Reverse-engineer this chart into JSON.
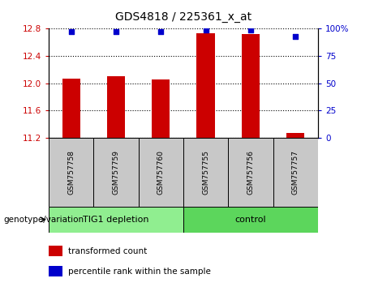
{
  "title": "GDS4818 / 225361_x_at",
  "samples": [
    "GSM757758",
    "GSM757759",
    "GSM757760",
    "GSM757755",
    "GSM757756",
    "GSM757757"
  ],
  "bar_values": [
    12.07,
    12.1,
    12.05,
    12.73,
    12.72,
    11.27
  ],
  "percentile_values": [
    97,
    97,
    97,
    99,
    99,
    93
  ],
  "ylim_left": [
    11.2,
    12.8
  ],
  "ylim_right": [
    0,
    100
  ],
  "yticks_left": [
    11.2,
    11.6,
    12.0,
    12.4,
    12.8
  ],
  "yticks_right": [
    0,
    25,
    50,
    75,
    100
  ],
  "bar_color": "#cc0000",
  "marker_color": "#0000cc",
  "bar_bottom": 11.2,
  "groups": [
    {
      "label": "TIG1 depletion",
      "indices": [
        0,
        1,
        2
      ],
      "color": "#90EE90"
    },
    {
      "label": "control",
      "indices": [
        3,
        4,
        5
      ],
      "color": "#5cd65c"
    }
  ],
  "group_box_color": "#c8c8c8",
  "legend_items": [
    {
      "color": "#cc0000",
      "label": "transformed count"
    },
    {
      "color": "#0000cc",
      "label": "percentile rank within the sample"
    }
  ],
  "genotype_label": "genotype/variation",
  "left_label_color": "#cc0000",
  "right_label_color": "#0000cc"
}
